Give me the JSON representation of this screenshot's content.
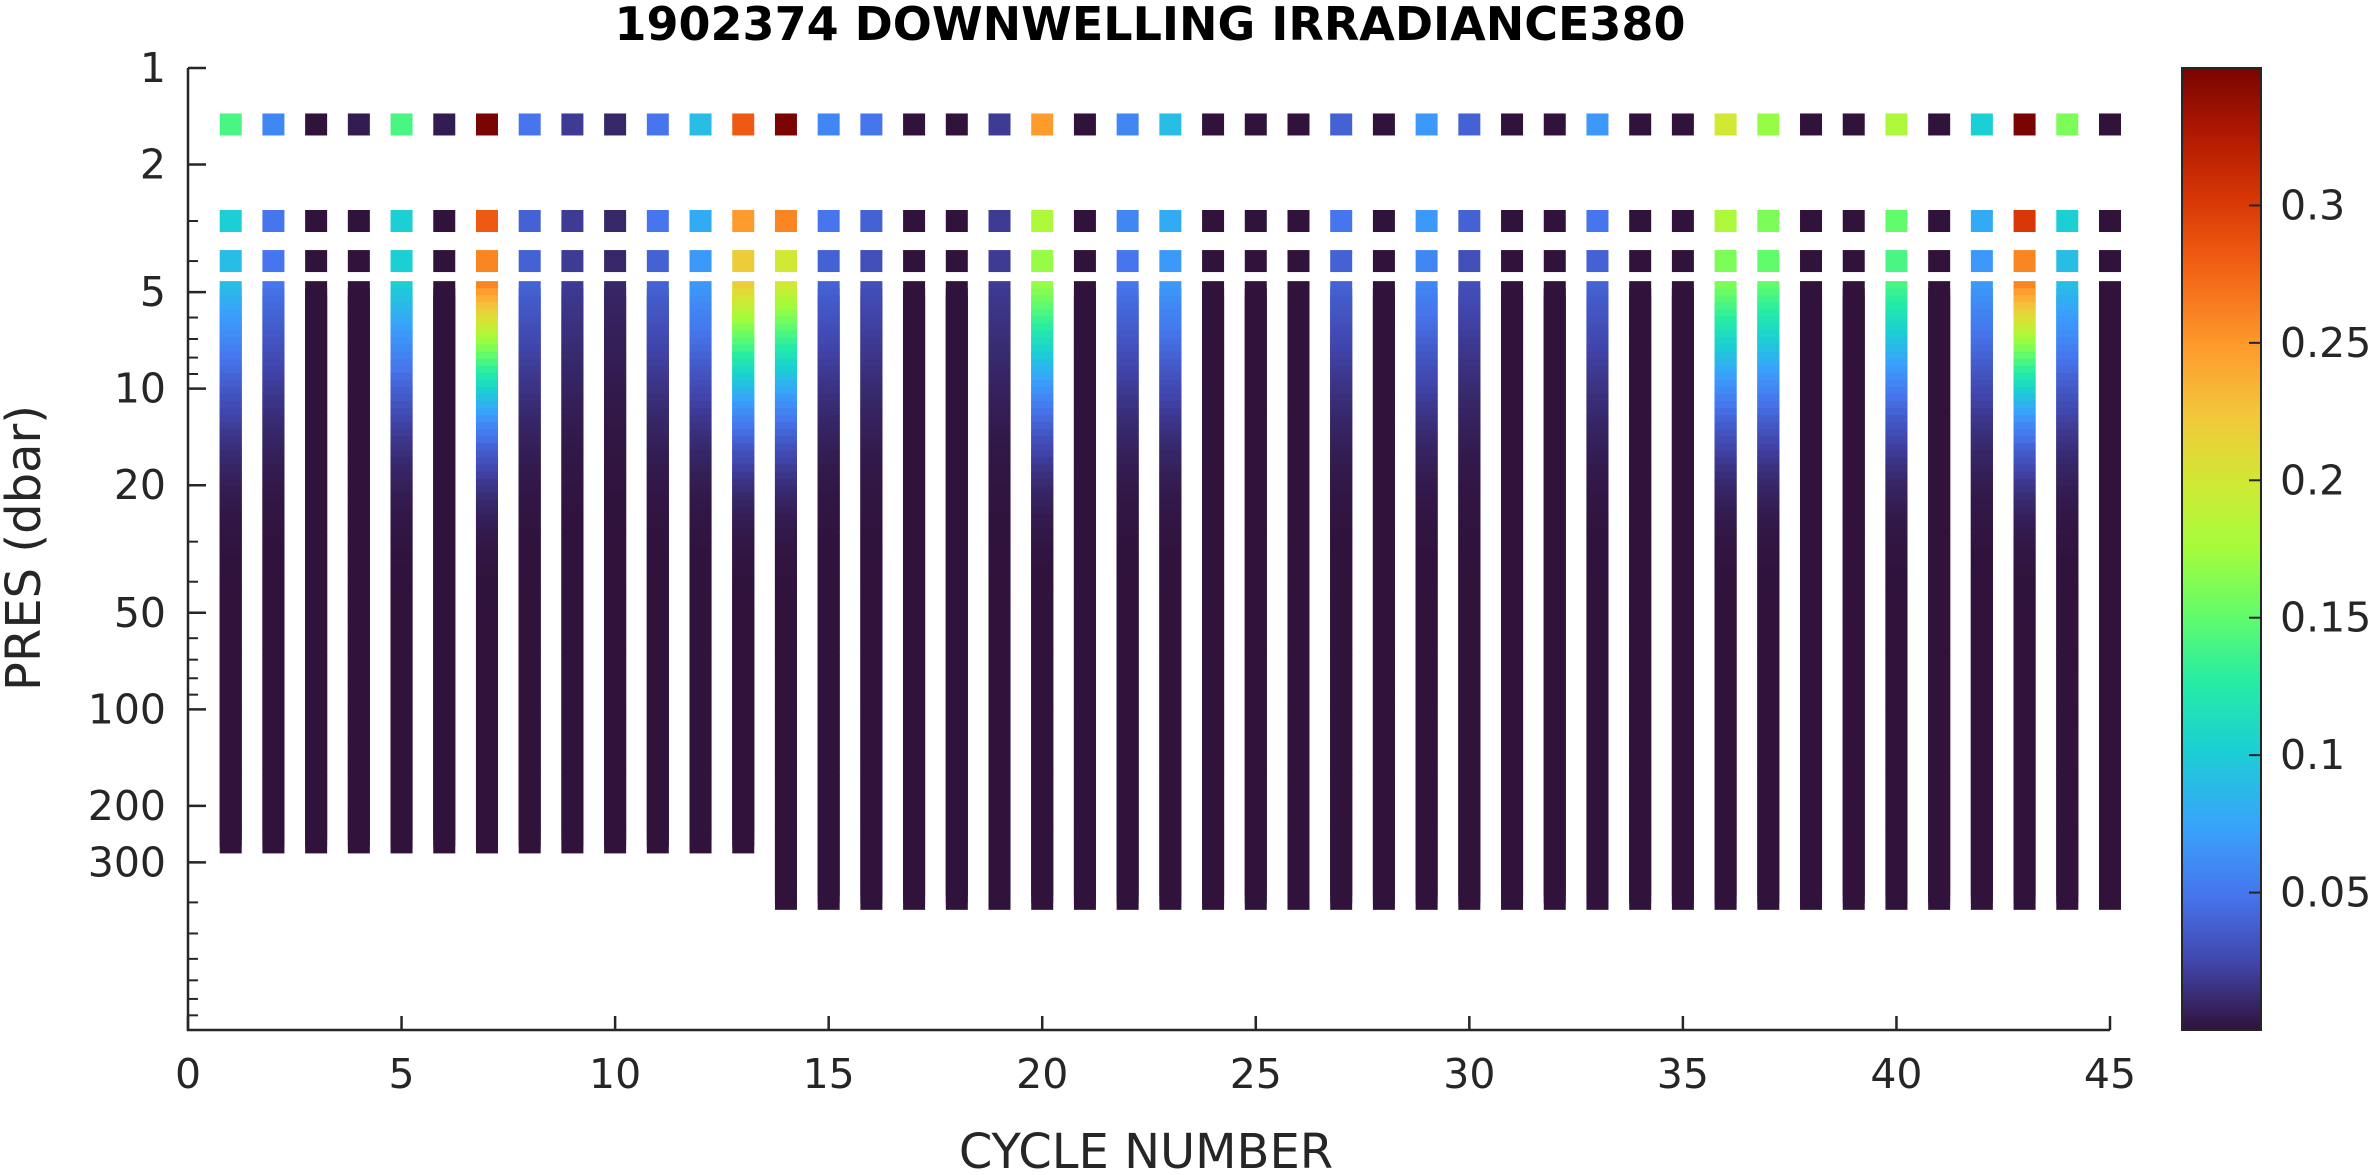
{
  "chart_data": {
    "type": "scatter",
    "title": "1902374  DOWNWELLING IRRADIANCE380",
    "xlabel": "CYCLE NUMBER",
    "ylabel": "PRES (dbar)",
    "xlim": [
      0,
      45
    ],
    "ylim": [
      1,
      1000
    ],
    "y_scale": "log",
    "y_reversed": true,
    "x_ticks": [
      "0",
      "5",
      "10",
      "15",
      "20",
      "25",
      "30",
      "35",
      "40",
      "45"
    ],
    "y_ticks": [
      "1",
      "2",
      "5",
      "10",
      "20",
      "50",
      "100",
      "200",
      "300"
    ],
    "colorbar": {
      "range": [
        0,
        0.35
      ],
      "ticks": [
        "0.05",
        "0.1",
        "0.15",
        "0.2",
        "0.25",
        "0.3"
      ],
      "colormap": "turbo"
    },
    "grid": false,
    "cycles": [
      1,
      2,
      3,
      4,
      5,
      6,
      7,
      8,
      9,
      10,
      11,
      12,
      13,
      14,
      15,
      16,
      17,
      18,
      19,
      20,
      21,
      22,
      23,
      24,
      25,
      26,
      27,
      28,
      29,
      30,
      31,
      32,
      33,
      34,
      35,
      36,
      37,
      38,
      39,
      40,
      41,
      42,
      43,
      44,
      45
    ],
    "max_pressure": [
      270,
      270,
      270,
      270,
      270,
      270,
      270,
      270,
      270,
      270,
      270,
      270,
      270,
      400,
      400,
      400,
      400,
      400,
      400,
      400,
      400,
      400,
      400,
      400,
      400,
      400,
      400,
      400,
      400,
      400,
      400,
      400,
      400,
      400,
      400,
      400,
      400,
      400,
      400,
      400,
      400,
      400,
      400,
      400,
      400
    ],
    "surface_points": [
      {
        "p": 1.5,
        "v": [
          0.14,
          0.06,
          0,
          0.005,
          0.14,
          0.005,
          0.35,
          0.05,
          0.02,
          0.01,
          0.05,
          0.09,
          0.28,
          0.35,
          0.06,
          0.05,
          0,
          0,
          0.02,
          0.25,
          0,
          0.06,
          0.09,
          0,
          0,
          0,
          0.04,
          0,
          0.07,
          0.04,
          0,
          0,
          0.07,
          0,
          0,
          0.2,
          0.17,
          0,
          0,
          0.18,
          0,
          0.1,
          0.35,
          0.16,
          0
        ]
      },
      {
        "p": 3.0,
        "v": [
          0.1,
          0.05,
          0,
          0,
          0.1,
          0,
          0.28,
          0.04,
          0.02,
          0.01,
          0.05,
          0.08,
          0.25,
          0.26,
          0.05,
          0.04,
          0,
          0,
          0.02,
          0.18,
          0,
          0.06,
          0.08,
          0,
          0,
          0,
          0.05,
          0,
          0.07,
          0.04,
          0,
          0,
          0.05,
          0,
          0,
          0.18,
          0.16,
          0,
          0,
          0.15,
          0,
          0.08,
          0.3,
          0.1,
          0
        ]
      },
      {
        "p": 4.0,
        "v": [
          0.09,
          0.05,
          0,
          0,
          0.1,
          0,
          0.26,
          0.04,
          0.02,
          0.01,
          0.04,
          0.07,
          0.22,
          0.2,
          0.04,
          0.03,
          0,
          0,
          0.02,
          0.17,
          0,
          0.05,
          0.07,
          0,
          0,
          0,
          0.04,
          0,
          0.06,
          0.03,
          0,
          0,
          0.04,
          0,
          0,
          0.16,
          0.15,
          0,
          0,
          0.14,
          0,
          0.07,
          0.26,
          0.09,
          0
        ]
      }
    ]
  }
}
